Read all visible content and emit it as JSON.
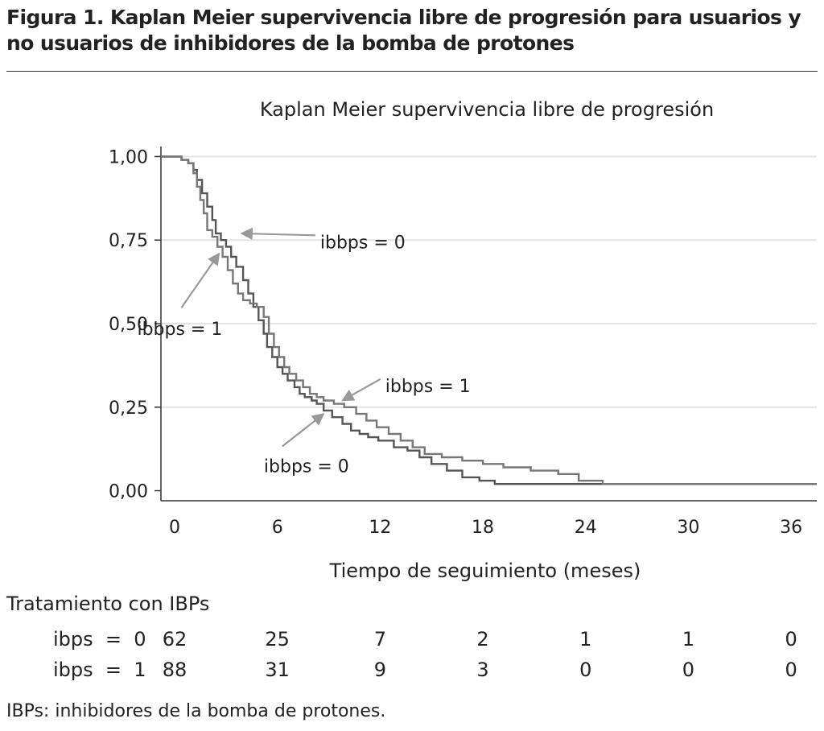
{
  "figure": {
    "caption": "Figura 1. Kaplan Meier supervivencia libre de progresión para usuarios y no usuarios de inhibidores de la bomba de protones",
    "footnote": "IBPs: inhibidores de la bomba de protones."
  },
  "chart_data": {
    "type": "line",
    "step": true,
    "title": "Kaplan Meier supervivencia libre de progresión",
    "xlabel": "Tiempo de seguimiento (meses)",
    "ylabel": "",
    "xlim": [
      -0.8,
      37.5
    ],
    "ylim": [
      -0.03,
      1.03
    ],
    "x_ticks": [
      0,
      6,
      12,
      18,
      24,
      30,
      36
    ],
    "x_tick_labels": [
      "0",
      "6",
      "12",
      "18",
      "24",
      "30",
      "36"
    ],
    "y_ticks": [
      0,
      0.25,
      0.5,
      0.75,
      1
    ],
    "y_tick_labels": [
      "0,00",
      "0,25",
      "0,50",
      "0,75",
      "1,00"
    ],
    "grid": "horizontal",
    "series": [
      {
        "name": "ibbps = 0",
        "color": "#555555",
        "x": [
          -0.8,
          0.4,
          0.8,
          1.1,
          1.3,
          1.6,
          1.9,
          2.2,
          2.4,
          2.7,
          3.0,
          3.3,
          3.6,
          4.0,
          4.3,
          4.6,
          4.9,
          5.2,
          5.4,
          5.7,
          6.0,
          6.3,
          6.6,
          7.0,
          7.3,
          7.6,
          8.0,
          8.3,
          8.7,
          9.2,
          9.8,
          10.3,
          10.8,
          11.3,
          11.9,
          12.8,
          13.6,
          14.3,
          15.0,
          15.9,
          16.8,
          17.8,
          18.7,
          21.2,
          23.6,
          30.0,
          37.5
        ],
        "y": [
          1.0,
          0.99,
          0.98,
          0.96,
          0.93,
          0.89,
          0.85,
          0.81,
          0.77,
          0.75,
          0.73,
          0.7,
          0.67,
          0.63,
          0.59,
          0.55,
          0.51,
          0.47,
          0.43,
          0.4,
          0.37,
          0.35,
          0.33,
          0.31,
          0.29,
          0.28,
          0.27,
          0.26,
          0.24,
          0.22,
          0.2,
          0.18,
          0.17,
          0.16,
          0.15,
          0.13,
          0.12,
          0.1,
          0.08,
          0.06,
          0.04,
          0.03,
          0.02,
          0.02,
          0.02,
          0.02,
          0.02
        ]
      },
      {
        "name": "ibbps = 1",
        "color": "#777777",
        "x": [
          -0.8,
          0.4,
          0.8,
          1.1,
          1.3,
          1.5,
          1.7,
          1.9,
          2.2,
          2.5,
          2.8,
          3.1,
          3.4,
          3.7,
          4.0,
          4.4,
          4.8,
          5.2,
          5.5,
          5.8,
          6.1,
          6.4,
          6.7,
          7.1,
          7.5,
          7.9,
          8.3,
          8.7,
          9.3,
          9.9,
          10.6,
          11.2,
          11.8,
          12.5,
          13.2,
          13.9,
          14.6,
          15.6,
          16.8,
          18.0,
          19.2,
          20.8,
          22.4,
          23.6,
          25.0,
          30.0,
          37.5
        ],
        "y": [
          1.0,
          0.99,
          0.98,
          0.95,
          0.91,
          0.87,
          0.83,
          0.78,
          0.76,
          0.73,
          0.7,
          0.66,
          0.62,
          0.59,
          0.57,
          0.56,
          0.55,
          0.52,
          0.47,
          0.43,
          0.4,
          0.37,
          0.35,
          0.33,
          0.31,
          0.29,
          0.28,
          0.27,
          0.26,
          0.25,
          0.23,
          0.21,
          0.19,
          0.17,
          0.15,
          0.13,
          0.11,
          0.1,
          0.09,
          0.08,
          0.07,
          0.06,
          0.05,
          0.03,
          0.02,
          0.02,
          0.02
        ]
      }
    ],
    "annotations": [
      {
        "name": "annotation-ibbps0-upper",
        "text": "ibbps = 0",
        "label_x": 8.5,
        "label_y": 0.745,
        "tip_x": 3.9,
        "tip_y": 0.77,
        "anchor": "start"
      },
      {
        "name": "annotation-ibbps1-upper",
        "text": "ibbps = 1",
        "label_x": 0.3,
        "label_y": 0.485,
        "tip_x": 2.6,
        "tip_y": 0.71,
        "anchor": "middle"
      },
      {
        "name": "annotation-ibbps1-lower",
        "text": "ibbps = 1",
        "label_x": 12.3,
        "label_y": 0.315,
        "tip_x": 9.8,
        "tip_y": 0.27,
        "anchor": "start"
      },
      {
        "name": "annotation-ibbps0-lower",
        "text": "ibbps = 0",
        "label_x": 7.7,
        "label_y": 0.075,
        "tip_x": 8.7,
        "tip_y": 0.23,
        "anchor": "middle"
      }
    ]
  },
  "risk_table": {
    "heading": "Tratamiento con IBPs",
    "time_points": [
      0,
      6,
      12,
      18,
      24,
      30,
      36
    ],
    "rows": [
      {
        "label": "ibps  =  0",
        "counts": [
          "62",
          "25",
          "7",
          "2",
          "1",
          "1",
          "0"
        ]
      },
      {
        "label": "ibps  =  1",
        "counts": [
          "88",
          "31",
          "9",
          "3",
          "0",
          "0",
          "0"
        ]
      }
    ]
  }
}
